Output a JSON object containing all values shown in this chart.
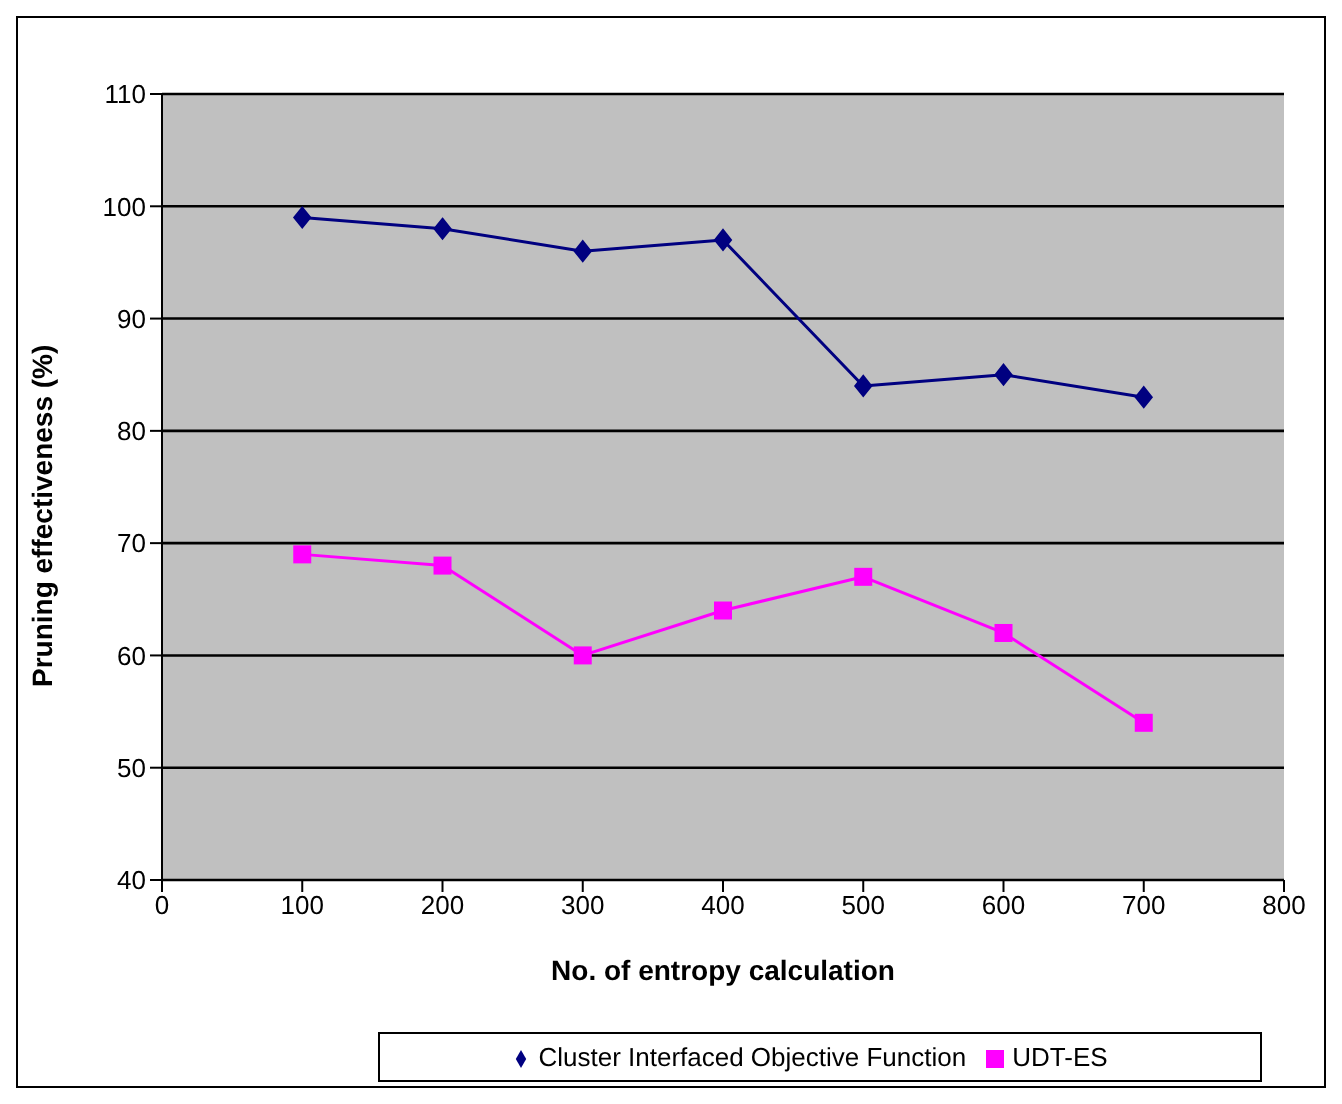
{
  "chart_data": {
    "type": "line",
    "xlabel": "No. of entropy calculation",
    "ylabel": "Pruning effectiveness (%)",
    "x": [
      100,
      200,
      300,
      400,
      500,
      600,
      700
    ],
    "series": [
      {
        "name": "Cluster Interfaced Objective Function",
        "color": "#000080",
        "marker": "diamond",
        "values": [
          99,
          98,
          96,
          97,
          84,
          85,
          83
        ]
      },
      {
        "name": "UDT-ES",
        "color": "#ff00ff",
        "marker": "square",
        "values": [
          69,
          68,
          60,
          64,
          67,
          62,
          54
        ]
      }
    ],
    "xlim": [
      0,
      800
    ],
    "xticks": [
      0,
      100,
      200,
      300,
      400,
      500,
      600,
      700,
      800
    ],
    "ylim": [
      40,
      110
    ],
    "yticks": [
      40,
      50,
      60,
      70,
      80,
      90,
      100,
      110
    ],
    "grid": "y",
    "legend": "bottom"
  }
}
